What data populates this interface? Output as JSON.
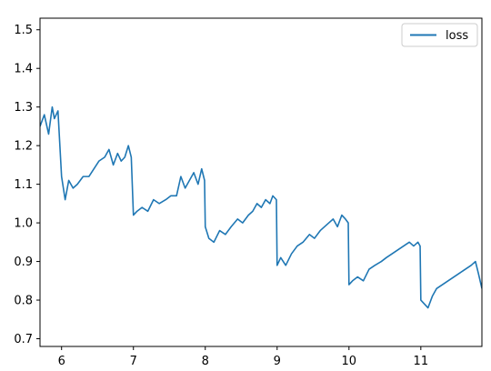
{
  "chart_data": {
    "type": "line",
    "title": "",
    "xlabel": "",
    "ylabel": "",
    "xlim": [
      5.7,
      11.85
    ],
    "ylim": [
      0.68,
      1.53
    ],
    "xticks": [
      6,
      7,
      8,
      9,
      10,
      11
    ],
    "yticks": [
      0.7,
      0.8,
      0.9,
      1.0,
      1.1,
      1.2,
      1.3,
      1.4,
      1.5
    ],
    "xtick_labels": [
      "6",
      "7",
      "8",
      "9",
      "10",
      "11"
    ],
    "ytick_labels": [
      "0.7",
      "0.8",
      "0.9",
      "1.0",
      "1.1",
      "1.2",
      "1.3",
      "1.4",
      "1.5"
    ],
    "grid": false,
    "legend_position": "top-right",
    "series": [
      {
        "name": "loss",
        "color": "#1f77b4",
        "x": [
          5.7,
          5.76,
          5.82,
          5.87,
          5.9,
          5.95,
          6.0,
          6.05,
          6.1,
          6.16,
          6.22,
          6.3,
          6.38,
          6.45,
          6.52,
          6.6,
          6.66,
          6.72,
          6.78,
          6.83,
          6.88,
          6.93,
          6.97,
          7.0,
          7.05,
          7.12,
          7.2,
          7.28,
          7.36,
          7.45,
          7.52,
          7.6,
          7.66,
          7.72,
          7.78,
          7.84,
          7.9,
          7.95,
          7.99,
          8.0,
          8.05,
          8.12,
          8.2,
          8.28,
          8.36,
          8.45,
          8.52,
          8.6,
          8.66,
          8.72,
          8.78,
          8.84,
          8.9,
          8.94,
          8.99,
          9.0,
          9.05,
          9.12,
          9.2,
          9.28,
          9.36,
          9.45,
          9.52,
          9.6,
          9.66,
          9.72,
          9.78,
          9.84,
          9.9,
          9.95,
          9.99,
          10.0,
          10.05,
          10.12,
          10.2,
          10.28,
          10.36,
          10.45,
          10.52,
          10.6,
          10.68,
          10.76,
          10.84,
          10.9,
          10.96,
          10.99,
          11.0,
          11.05,
          11.1,
          11.16,
          11.22,
          11.3,
          11.38,
          11.46,
          11.54,
          11.62,
          11.7,
          11.76,
          11.8,
          11.85
        ],
        "y": [
          1.25,
          1.28,
          1.23,
          1.3,
          1.27,
          1.29,
          1.12,
          1.06,
          1.11,
          1.09,
          1.1,
          1.12,
          1.12,
          1.14,
          1.16,
          1.17,
          1.19,
          1.15,
          1.18,
          1.16,
          1.17,
          1.2,
          1.17,
          1.02,
          1.03,
          1.04,
          1.03,
          1.06,
          1.05,
          1.06,
          1.07,
          1.07,
          1.12,
          1.09,
          1.11,
          1.13,
          1.1,
          1.14,
          1.11,
          0.99,
          0.96,
          0.95,
          0.98,
          0.97,
          0.99,
          1.01,
          1.0,
          1.02,
          1.03,
          1.05,
          1.04,
          1.06,
          1.05,
          1.07,
          1.06,
          0.89,
          0.91,
          0.89,
          0.92,
          0.94,
          0.95,
          0.97,
          0.96,
          0.98,
          0.99,
          1.0,
          1.01,
          0.99,
          1.02,
          1.01,
          1.0,
          0.84,
          0.85,
          0.86,
          0.85,
          0.88,
          0.89,
          0.9,
          0.91,
          0.92,
          0.93,
          0.94,
          0.95,
          0.94,
          0.95,
          0.94,
          0.8,
          0.79,
          0.78,
          0.81,
          0.83,
          0.84,
          0.85,
          0.86,
          0.87,
          0.88,
          0.89,
          0.9,
          0.87,
          0.83
        ]
      }
    ]
  }
}
